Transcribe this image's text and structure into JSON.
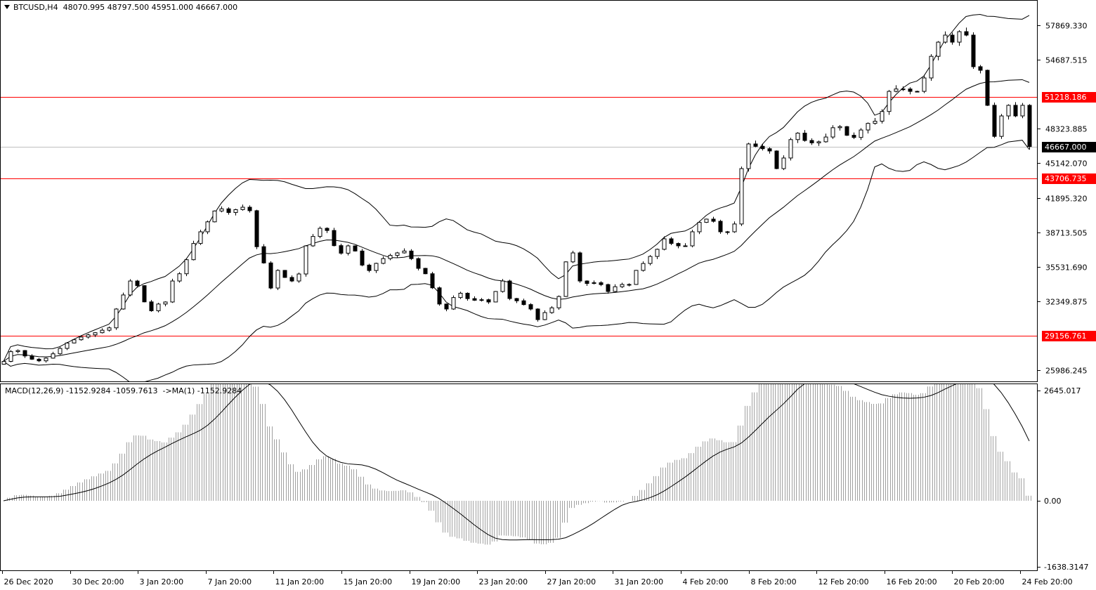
{
  "header": {
    "symbol": "BTCUSD,H4",
    "open": "48070.995",
    "high": "48797.500",
    "low": "45951.000",
    "close": "46667.000"
  },
  "macd_header": {
    "name": "MACD(12,26,9)",
    "main": "-1152.9284",
    "signal": "-1059.7613",
    "ma": "->MA(1)",
    "ma_value": "-1152.9284"
  },
  "chart_data": {
    "type": "candlestick",
    "symbol": "BTCUSD",
    "timeframe": "H4",
    "closes": [
      26800,
      27700,
      27800,
      27300,
      27000,
      26850,
      27100,
      27500,
      28000,
      28500,
      28800,
      29050,
      29250,
      29450,
      29680,
      29900,
      31640,
      32940,
      34230,
      33800,
      32300,
      31480,
      32100,
      32290,
      34230,
      34900,
      36200,
      37700,
      38780,
      39700,
      40700,
      40900,
      40560,
      40830,
      41050,
      40730,
      37400,
      35900,
      33580,
      35210,
      34560,
      34230,
      34880,
      37480,
      38350,
      39100,
      38900,
      37500,
      36800,
      37480,
      37000,
      35700,
      35200,
      35860,
      36300,
      36600,
      36830,
      37000,
      36300,
      35400,
      34900,
      33600,
      32100,
      31640,
      32700,
      33100,
      32600,
      32450,
      32500,
      32290,
      33260,
      34230,
      32610,
      32400,
      32050,
      31640,
      30660,
      31310,
      31750,
      32800,
      36000,
      36830,
      34230,
      34000,
      34070,
      33900,
      33260,
      33700,
      33910,
      33910,
      35210,
      35850,
      36500,
      37160,
      38130,
      37700,
      37480,
      37480,
      38780,
      39650,
      39950,
      39750,
      38780,
      38780,
      39500,
      44620,
      46900,
      46680,
      46460,
      46250,
      44620,
      45600,
      47300,
      47900,
      47220,
      47000,
      47100,
      47540,
      48400,
      48500,
      47700,
      47500,
      48190,
      48800,
      49000,
      49900,
      51760,
      51980,
      51980,
      51760,
      51760,
      53000,
      55000,
      56310,
      56960,
      56310,
      57280,
      56960,
      54040,
      53710,
      50470,
      47600,
      49490,
      50470,
      49490,
      50470,
      46667
    ],
    "price_axis": {
      "range": [
        24400,
        59600
      ],
      "ticks": [
        "57869.330",
        "54687.515",
        "48323.885",
        "45142.070",
        "41895.320",
        "38713.505",
        "35531.690",
        "32349.875",
        "25986.245"
      ]
    },
    "horizontal_lines": [
      {
        "value": "51218.186",
        "color": "#ff0000"
      },
      {
        "value": "43706.735",
        "color": "#ff0000"
      },
      {
        "value": "29156.761",
        "color": "#ff0000"
      }
    ],
    "current_price": {
      "value": "46667.000",
      "color": "#000000",
      "line_color": "#c0c0c0"
    },
    "time_axis": [
      "26 Dec 2020",
      "30 Dec 20:00",
      "3 Jan 20:00",
      "7 Jan 20:00",
      "11 Jan 20:00",
      "15 Jan 20:00",
      "19 Jan 20:00",
      "23 Jan 20:00",
      "27 Jan 20:00",
      "31 Jan 20:00",
      "4 Feb 20:00",
      "8 Feb 20:00",
      "12 Feb 20:00",
      "16 Feb 20:00",
      "20 Feb 20:00",
      "24 Feb 20:00"
    ],
    "indicators": {
      "bollinger_bands": {
        "period": 20,
        "deviation": 2,
        "color": "#000000"
      },
      "macd": {
        "fast": 12,
        "slow": 26,
        "signal": 9,
        "range": [
          -1638.3147,
          2645.017
        ],
        "ticks": [
          "2645.017",
          "0.00",
          "-1638.3147"
        ],
        "histogram_color": "#a0a0a0",
        "signal_color": "#000000"
      }
    },
    "colors": {
      "bull_body": "#ffffff",
      "bear_body": "#000000",
      "outline": "#000000",
      "background": "#ffffff"
    }
  }
}
